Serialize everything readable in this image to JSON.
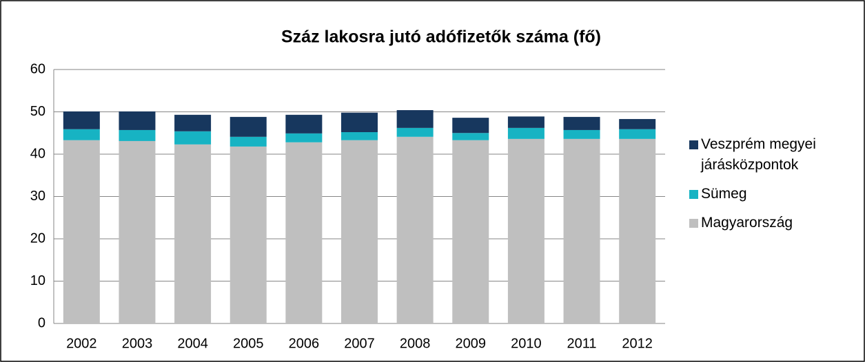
{
  "chart_data": {
    "type": "bar",
    "stacked": true,
    "title": "Száz lakosra jutó adófizetők száma (fő)",
    "categories": [
      "2002",
      "2003",
      "2004",
      "2005",
      "2006",
      "2007",
      "2008",
      "2009",
      "2010",
      "2011",
      "2012"
    ],
    "series": [
      {
        "name": "Magyarország",
        "color": "#bfbfbf",
        "values": [
          43.3,
          43.1,
          42.3,
          41.8,
          42.8,
          43.3,
          44.1,
          43.3,
          43.6,
          43.6,
          43.6
        ]
      },
      {
        "name": "Sümeg",
        "color": "#17b3c3",
        "values": [
          2.6,
          2.6,
          3.1,
          2.3,
          2.1,
          1.9,
          2.1,
          1.7,
          2.6,
          2.1,
          2.3
        ]
      },
      {
        "name": "Veszprém megyei járásközpontok",
        "color": "#17375e",
        "values": [
          4.2,
          4.4,
          3.9,
          4.7,
          4.4,
          4.6,
          4.2,
          3.6,
          2.7,
          3.1,
          2.4
        ]
      }
    ],
    "ylim": [
      0,
      60
    ],
    "yticks": [
      0,
      10,
      20,
      30,
      40,
      50,
      60
    ],
    "grid": true,
    "legend": "right"
  }
}
